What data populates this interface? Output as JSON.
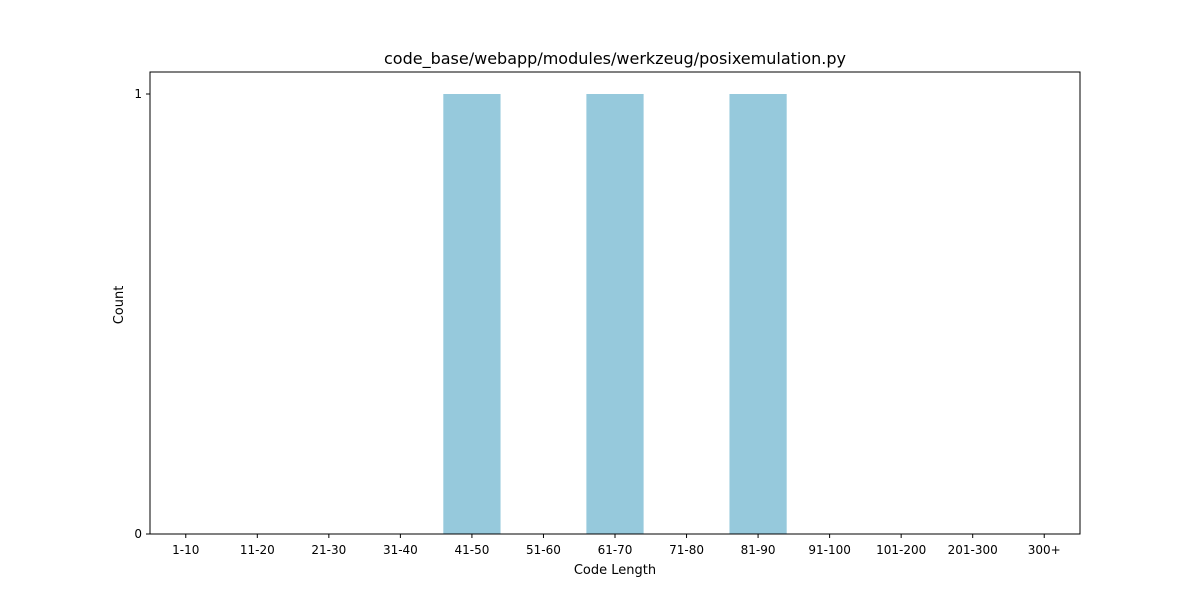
{
  "chart_data": {
    "type": "bar",
    "title": "code_base/webapp/modules/werkzeug/posixemulation.py",
    "xlabel": "Code Length",
    "ylabel": "Count",
    "categories": [
      "1-10",
      "11-20",
      "21-30",
      "31-40",
      "41-50",
      "51-60",
      "61-70",
      "71-80",
      "81-90",
      "91-100",
      "101-200",
      "201-300",
      "300+"
    ],
    "values": [
      0,
      0,
      0,
      0,
      1,
      0,
      1,
      0,
      1,
      0,
      0,
      0,
      0
    ],
    "ylim": [
      0,
      1.05
    ],
    "yticks": [
      0,
      1
    ],
    "bar_color": "#96c9dc",
    "grid": false,
    "legend": "none"
  }
}
